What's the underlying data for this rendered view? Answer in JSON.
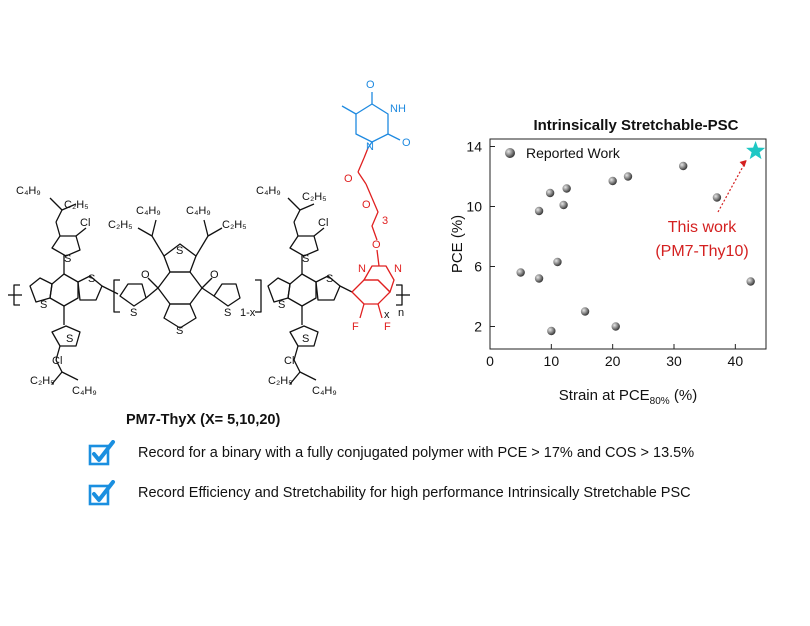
{
  "molecule": {
    "caption": "PM7-ThyX (X= 5,10,20)",
    "labels": {
      "c4h9": "C₄H₉",
      "c2h5": "C₂H₅",
      "cl": "Cl",
      "s": "S",
      "o": "O",
      "n": "N",
      "nh": "NH",
      "f": "F",
      "one_minus_x": "1-x",
      "x": "x",
      "n_sub": "n",
      "three": "3"
    },
    "colors": {
      "ink": "#111111",
      "thymine": "#1f8ae0",
      "linker": "#e02020"
    }
  },
  "chart_data": {
    "type": "scatter",
    "title": "Intrinsically Stretchable-PSC",
    "xlabel": "Strain at PCE80% (%)",
    "xlabel_main": "Strain at PCE",
    "xlabel_sub": "80%",
    "xlabel_tail": " (%)",
    "ylabel": "PCE (%)",
    "xlim": [
      0,
      45
    ],
    "ylim": [
      0.5,
      14.5
    ],
    "xticks": [
      0,
      10,
      20,
      30,
      40
    ],
    "yticks": [
      2,
      6,
      10,
      14
    ],
    "series": [
      {
        "name": "Reported Work",
        "marker": "grey-sphere",
        "color": "#8a8a8a",
        "points": [
          {
            "x": 5,
            "y": 5.6
          },
          {
            "x": 8,
            "y": 5.2
          },
          {
            "x": 8,
            "y": 9.7
          },
          {
            "x": 9.8,
            "y": 10.9
          },
          {
            "x": 10,
            "y": 1.7
          },
          {
            "x": 11,
            "y": 6.3
          },
          {
            "x": 12,
            "y": 10.1
          },
          {
            "x": 12.5,
            "y": 11.2
          },
          {
            "x": 15.5,
            "y": 3
          },
          {
            "x": 20,
            "y": 11.7
          },
          {
            "x": 20.5,
            "y": 2
          },
          {
            "x": 22.5,
            "y": 12
          },
          {
            "x": 31.5,
            "y": 12.7
          },
          {
            "x": 37,
            "y": 10.6
          },
          {
            "x": 42.5,
            "y": 5
          }
        ]
      },
      {
        "name": "PM7-Thy10",
        "marker": "star",
        "color": "#1fc7c4",
        "points": [
          {
            "x": 43.3,
            "y": 13.7
          }
        ]
      }
    ],
    "legend": {
      "label": "Reported Work",
      "position": "top-left"
    },
    "annotation": {
      "line1": "This work",
      "line2": "(PM7-Thy10)",
      "color": "#d42020"
    }
  },
  "checklist": {
    "items": [
      {
        "text": "Record for a binary with a fully conjugated polymer with PCE > 17% and COS > 13.5%",
        "icon": "checked-box-icon"
      },
      {
        "text": "Record Efficiency and Stretchability for high performance Intrinsically Stretchable PSC",
        "icon": "checked-box-icon"
      }
    ],
    "icon_color": "#1a8fe0"
  }
}
